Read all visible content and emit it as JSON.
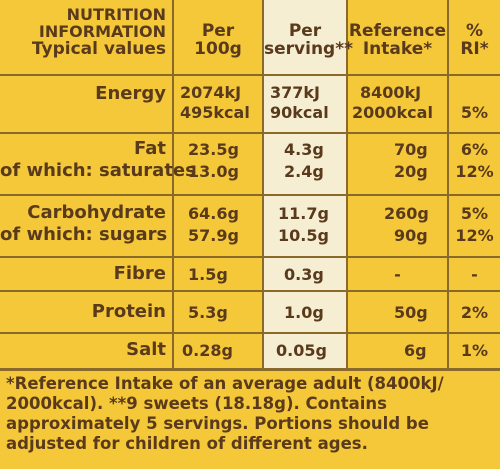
{
  "headers": {
    "col1": [
      "NUTRITION",
      "INFORMATION",
      "Typical values"
    ],
    "col2": [
      "Per",
      "100g"
    ],
    "col3": [
      "Per",
      "serving**"
    ],
    "col4": [
      "Reference",
      "Intake*"
    ],
    "col5": [
      "%",
      "RI*"
    ]
  },
  "rows": [
    {
      "label": [
        "Energy",
        ""
      ],
      "per100": [
        "2074kJ",
        "495kcal"
      ],
      "serving": [
        "377kJ",
        "90kcal"
      ],
      "ri": [
        "8400kJ",
        "2000kcal"
      ],
      "pct": [
        "",
        "5%"
      ]
    },
    {
      "label": [
        "Fat",
        "of which: saturates"
      ],
      "per100": [
        "23.5g",
        "13.0g"
      ],
      "serving": [
        "4.3g",
        "2.4g"
      ],
      "ri": [
        "70g",
        "20g"
      ],
      "pct": [
        "6%",
        "12%"
      ]
    },
    {
      "label": [
        "Carbohydrate",
        "of which: sugars"
      ],
      "per100": [
        "64.6g",
        "57.9g"
      ],
      "serving": [
        "11.7g",
        "10.5g"
      ],
      "ri": [
        "260g",
        "90g"
      ],
      "pct": [
        "5%",
        "12%"
      ]
    },
    {
      "label": [
        "Fibre"
      ],
      "per100": [
        "1.5g"
      ],
      "serving": [
        "0.3g"
      ],
      "ri": [
        "-"
      ],
      "pct": [
        "-"
      ]
    },
    {
      "label": [
        "Protein"
      ],
      "per100": [
        "5.3g"
      ],
      "serving": [
        "1.0g"
      ],
      "ri": [
        "50g"
      ],
      "pct": [
        "2%"
      ]
    },
    {
      "label": [
        "Salt"
      ],
      "per100": [
        "0.28g"
      ],
      "serving": [
        "0.05g"
      ],
      "ri": [
        "6g"
      ],
      "pct": [
        "1%"
      ]
    }
  ],
  "footnote": [
    "*Reference Intake of an average adult (8400kJ/",
    "2000kcal). **9 sweets (18.18g). Contains",
    "approximately 5 servings. Portions should be",
    "adjusted for children of different ages."
  ],
  "colors": {
    "background": "#f4c838",
    "text": "#5a3a1c",
    "serving_column": "#f6eed2"
  }
}
